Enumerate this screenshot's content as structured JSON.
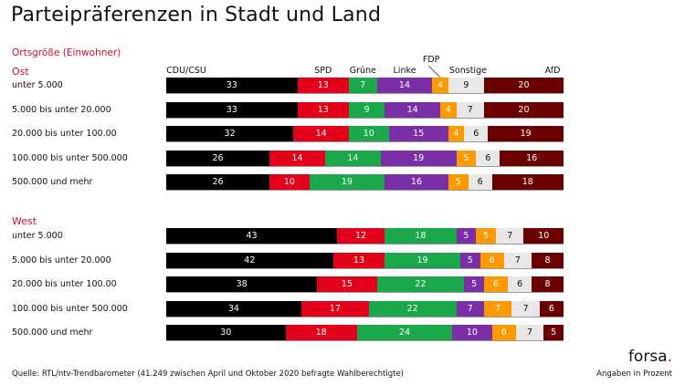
{
  "header": {
    "title": "Parteipräferenzen in Stadt und Land"
  },
  "subheading": "Ortsgröße (Einwohner)",
  "footer": {
    "source": "Quelle: RTL/ntv-Trendbarometer (41.249 zwischen April und Oktober 2020 befragte Wahlberechtigte)",
    "logo_text": "forsa",
    "logo_dot": ".",
    "unit_note": "Angaben in Prozent"
  },
  "chart_data": {
    "type": "bar",
    "orientation": "horizontal",
    "stacked": true,
    "title": "Parteipräferenzen in Stadt und Land",
    "xlabel": "",
    "ylabel": "Ortsgröße (Einwohner)",
    "unit": "Prozent",
    "legend_position": "top",
    "parties": [
      {
        "name": "CDU/CSU",
        "color": "#000000",
        "text_color": "#ffffff"
      },
      {
        "name": "SPD",
        "color": "#e2001a",
        "text_color": "#ffffff"
      },
      {
        "name": "Grüne",
        "color": "#1aa84a",
        "text_color": "#ffffff"
      },
      {
        "name": "Linke",
        "color": "#7b2fa6",
        "text_color": "#ffffff"
      },
      {
        "name": "FDP",
        "color": "#ff9900",
        "text_color": "#ffffff"
      },
      {
        "name": "Sonstige",
        "color": "#e8e8e8",
        "text_color": "#111111"
      },
      {
        "name": "AfD",
        "color": "#6b0000",
        "text_color": "#ffffff"
      }
    ],
    "groups": [
      {
        "name": "Ost",
        "categories": [
          "unter 5.000",
          "5.000 bis unter 20.000",
          "20.000 bis unter 100.00",
          "100.000 bis unter 500.000",
          "500.000 und mehr"
        ],
        "series": [
          {
            "name": "CDU/CSU",
            "values": [
              33,
              33,
              32,
              26,
              26
            ]
          },
          {
            "name": "SPD",
            "values": [
              13,
              13,
              14,
              14,
              10
            ]
          },
          {
            "name": "Grüne",
            "values": [
              7,
              9,
              10,
              14,
              19
            ]
          },
          {
            "name": "Linke",
            "values": [
              14,
              14,
              15,
              19,
              16
            ]
          },
          {
            "name": "FDP",
            "values": [
              4,
              4,
              4,
              5,
              5
            ]
          },
          {
            "name": "Sonstige",
            "values": [
              9,
              7,
              6,
              6,
              6
            ]
          },
          {
            "name": "AfD",
            "values": [
              20,
              20,
              19,
              16,
              18
            ]
          }
        ]
      },
      {
        "name": "West",
        "categories": [
          "unter 5.000",
          "5.000 bis unter 20.000",
          "20.000 bis unter 100.00",
          "100.000 bis unter 500.000",
          "500.000 und mehr"
        ],
        "series": [
          {
            "name": "CDU/CSU",
            "values": [
              43,
              42,
              38,
              34,
              30
            ]
          },
          {
            "name": "SPD",
            "values": [
              12,
              13,
              15,
              17,
              18
            ]
          },
          {
            "name": "Grüne",
            "values": [
              18,
              19,
              22,
              22,
              24
            ]
          },
          {
            "name": "Linke",
            "values": [
              5,
              5,
              5,
              7,
              10
            ]
          },
          {
            "name": "FDP",
            "values": [
              5,
              6,
              6,
              7,
              6
            ]
          },
          {
            "name": "Sonstige",
            "values": [
              7,
              7,
              6,
              7,
              7
            ]
          },
          {
            "name": "AfD",
            "values": [
              10,
              8,
              8,
              6,
              5
            ]
          }
        ]
      }
    ]
  }
}
